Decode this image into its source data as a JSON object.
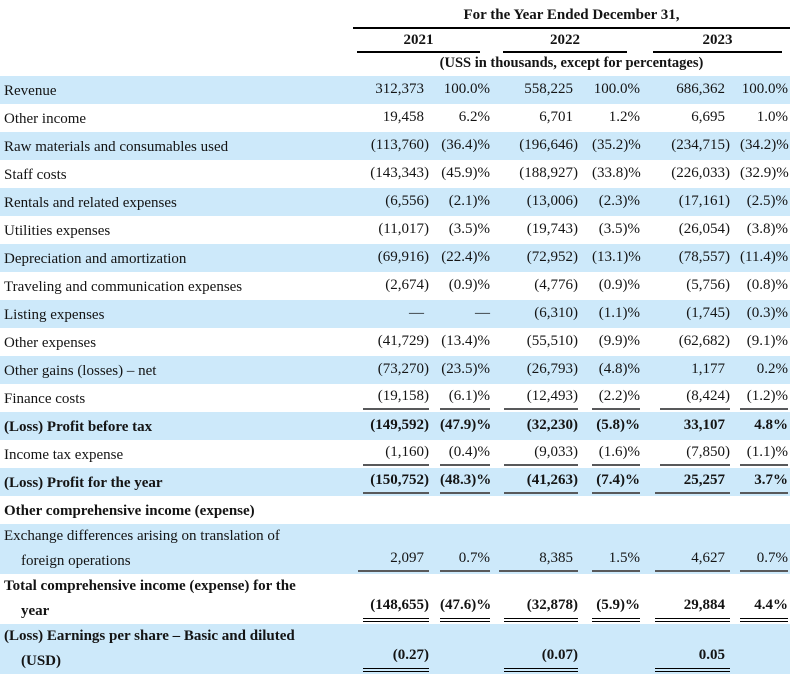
{
  "table": {
    "period_heading": "For the Year Ended December 31,",
    "years": [
      "2021",
      "2022",
      "2023"
    ],
    "unit_note": "(USS in thousands, except for percentages)",
    "columns_per_year": [
      "amount",
      "percent_of_revenue"
    ],
    "rows": [
      {
        "label": "Revenue",
        "bold": false,
        "shade": true,
        "underline": "none",
        "cells": [
          "312,373",
          "100.0%",
          "558,225",
          "100.0%",
          "686,362",
          "100.0%"
        ]
      },
      {
        "label": "Other income",
        "bold": false,
        "shade": false,
        "underline": "none",
        "cells": [
          "19,458",
          "6.2%",
          "6,701",
          "1.2%",
          "6,695",
          "1.0%"
        ]
      },
      {
        "label": "Raw materials and consumables used",
        "bold": false,
        "shade": true,
        "underline": "none",
        "cells": [
          "(113,760)",
          "(36.4)%",
          "(196,646)",
          "(35.2)%",
          "(234,715)",
          "(34.2)%"
        ]
      },
      {
        "label": "Staff costs",
        "bold": false,
        "shade": false,
        "underline": "none",
        "cells": [
          "(143,343)",
          "(45.9)%",
          "(188,927)",
          "(33.8)%",
          "(226,033)",
          "(32.9)%"
        ]
      },
      {
        "label": "Rentals and related expenses",
        "bold": false,
        "shade": true,
        "underline": "none",
        "cells": [
          "(6,556)",
          "(2.1)%",
          "(13,006)",
          "(2.3)%",
          "(17,161)",
          "(2.5)%"
        ]
      },
      {
        "label": "Utilities expenses",
        "bold": false,
        "shade": false,
        "underline": "none",
        "cells": [
          "(11,017)",
          "(3.5)%",
          "(19,743)",
          "(3.5)%",
          "(26,054)",
          "(3.8)%"
        ]
      },
      {
        "label": "Depreciation and amortization",
        "bold": false,
        "shade": true,
        "underline": "none",
        "cells": [
          "(69,916)",
          "(22.4)%",
          "(72,952)",
          "(13.1)%",
          "(78,557)",
          "(11.4)%"
        ]
      },
      {
        "label": "Traveling and communication expenses",
        "bold": false,
        "shade": false,
        "underline": "none",
        "cells": [
          "(2,674)",
          "(0.9)%",
          "(4,776)",
          "(0.9)%",
          "(5,756)",
          "(0.8)%"
        ]
      },
      {
        "label": "Listing expenses",
        "bold": false,
        "shade": true,
        "underline": "none",
        "cells": [
          "—",
          "—",
          "(6,310)",
          "(1.1)%",
          "(1,745)",
          "(0.3)%"
        ]
      },
      {
        "label": "Other expenses",
        "bold": false,
        "shade": false,
        "underline": "none",
        "cells": [
          "(41,729)",
          "(13.4)%",
          "(55,510)",
          "(9.9)%",
          "(62,682)",
          "(9.1)%"
        ]
      },
      {
        "label": "Other gains (losses) – net",
        "bold": false,
        "shade": true,
        "underline": "none",
        "cells": [
          "(73,270)",
          "(23.5)%",
          "(26,793)",
          "(4.8)%",
          "1,177",
          "0.2%"
        ]
      },
      {
        "label": "Finance costs",
        "bold": false,
        "shade": false,
        "underline": "single",
        "cells": [
          "(19,158)",
          "(6.1)%",
          "(12,493)",
          "(2.2)%",
          "(8,424)",
          "(1.2)%"
        ]
      },
      {
        "label": "(Loss) Profit before tax",
        "bold": true,
        "shade": true,
        "underline": "none",
        "cells": [
          "(149,592)",
          "(47.9)%",
          "(32,230)",
          "(5.8)%",
          "33,107",
          "4.8%"
        ]
      },
      {
        "label": "Income tax expense",
        "bold": false,
        "shade": false,
        "underline": "single",
        "cells": [
          "(1,160)",
          "(0.4)%",
          "(9,033)",
          "(1.6)%",
          "(7,850)",
          "(1.1)%"
        ]
      },
      {
        "label": "(Loss) Profit for the year",
        "bold": true,
        "shade": true,
        "underline": "single",
        "cells": [
          "(150,752)",
          "(48.3)%",
          "(41,263)",
          "(7.4)%",
          "25,257",
          "3.7%"
        ]
      },
      {
        "label": "Other comprehensive income (expense)",
        "bold": true,
        "shade": false,
        "underline": "none",
        "cells": [
          "",
          "",
          "",
          "",
          "",
          ""
        ]
      },
      {
        "label": "Exchange differences arising on translation of",
        "label2": "foreign operations",
        "bold": false,
        "shade": true,
        "underline": "single",
        "cells": [
          "2,097",
          "0.7%",
          "8,385",
          "1.5%",
          "4,627",
          "0.7%"
        ]
      },
      {
        "label": "Total comprehensive income (expense) for the",
        "label2": "year",
        "bold": true,
        "shade": false,
        "underline": "double",
        "cells": [
          "(148,655)",
          "(47.6)%",
          "(32,878)",
          "(5.9)%",
          "29,884",
          "4.4%"
        ]
      },
      {
        "label": "(Loss) Earnings per share – Basic and diluted",
        "label2": "(USD)",
        "bold": true,
        "shade": true,
        "underline": "double",
        "cells": [
          "(0.27)",
          "",
          "(0.07)",
          "",
          "0.05",
          ""
        ]
      }
    ]
  },
  "colors": {
    "row_stripe": "#cde9fa",
    "rule_gray": "#58595b",
    "rule_black": "#000000",
    "text": "#141414"
  }
}
